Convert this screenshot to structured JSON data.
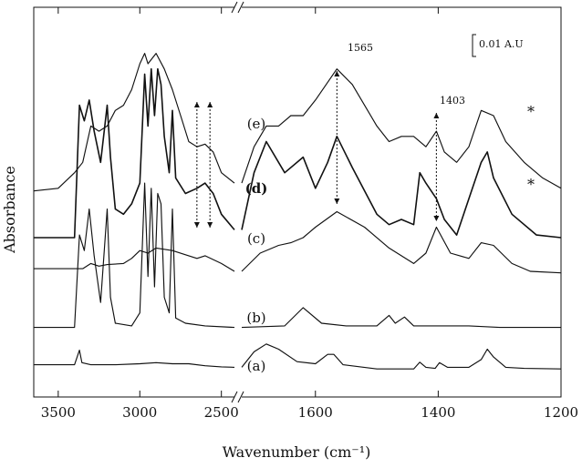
{
  "chart_data": {
    "type": "line",
    "title": "",
    "xlabel": "Wavenumber (cm⁻¹)",
    "ylabel": "Absorbance",
    "x_axis": {
      "broken": true,
      "reversed": true,
      "segments": [
        {
          "range": [
            3650,
            2420
          ],
          "ticks": [
            "3500",
            "3000",
            "2500"
          ],
          "tick_values": [
            3500,
            3000,
            2500
          ]
        },
        {
          "range": [
            1720,
            1200
          ],
          "ticks": [
            "1600",
            "1400",
            "1200"
          ],
          "tick_values": [
            1600,
            1400,
            1200
          ]
        }
      ]
    },
    "y_axis": {
      "ticks_shown": false
    },
    "scale_bar": "0.01 A.U",
    "peak_annotations": [
      {
        "label": "1565",
        "x": 1565
      },
      {
        "label": "1403",
        "x": 1403
      }
    ],
    "extra_arrows_x": [
      2650,
      2570
    ],
    "series": [
      {
        "name": "(a)",
        "offset": 0.1,
        "points": [
          [
            3650,
            0.1
          ],
          [
            3400,
            0.1
          ],
          [
            3370,
            0.38
          ],
          [
            3355,
            0.14
          ],
          [
            3300,
            0.1
          ],
          [
            3150,
            0.1
          ],
          [
            3000,
            0.12
          ],
          [
            2900,
            0.14
          ],
          [
            2800,
            0.12
          ],
          [
            2700,
            0.12
          ],
          [
            2600,
            0.08
          ],
          [
            2500,
            0.06
          ],
          [
            2420,
            0.05
          ],
          [
            1720,
            0.05
          ],
          [
            1700,
            0.35
          ],
          [
            1680,
            0.5
          ],
          [
            1660,
            0.4
          ],
          [
            1630,
            0.16
          ],
          [
            1600,
            0.12
          ],
          [
            1580,
            0.3
          ],
          [
            1570,
            0.3
          ],
          [
            1555,
            0.1
          ],
          [
            1500,
            0.02
          ],
          [
            1440,
            0.02
          ],
          [
            1430,
            0.15
          ],
          [
            1420,
            0.05
          ],
          [
            1405,
            0.03
          ],
          [
            1398,
            0.14
          ],
          [
            1385,
            0.05
          ],
          [
            1350,
            0.05
          ],
          [
            1330,
            0.2
          ],
          [
            1320,
            0.4
          ],
          [
            1310,
            0.25
          ],
          [
            1290,
            0.05
          ],
          [
            1260,
            0.03
          ],
          [
            1200,
            0.02
          ]
        ]
      },
      {
        "name": "(b)",
        "offset": 0.9,
        "points": [
          [
            3650,
            0.02
          ],
          [
            3400,
            0.02
          ],
          [
            3370,
            1.8
          ],
          [
            3340,
            1.5
          ],
          [
            3310,
            2.3
          ],
          [
            3280,
            1.4
          ],
          [
            3240,
            0.5
          ],
          [
            3200,
            2.3
          ],
          [
            3180,
            0.6
          ],
          [
            3150,
            0.1
          ],
          [
            3050,
            0.05
          ],
          [
            3000,
            0.3
          ],
          [
            2970,
            2.8
          ],
          [
            2950,
            1.0
          ],
          [
            2930,
            2.7
          ],
          [
            2910,
            0.8
          ],
          [
            2890,
            2.6
          ],
          [
            2870,
            2.4
          ],
          [
            2850,
            0.6
          ],
          [
            2820,
            0.3
          ],
          [
            2800,
            2.3
          ],
          [
            2780,
            0.2
          ],
          [
            2720,
            0.1
          ],
          [
            2600,
            0.05
          ],
          [
            2420,
            0.02
          ],
          [
            1720,
            0.02
          ],
          [
            1650,
            0.05
          ],
          [
            1620,
            0.4
          ],
          [
            1590,
            0.1
          ],
          [
            1550,
            0.05
          ],
          [
            1500,
            0.05
          ],
          [
            1480,
            0.25
          ],
          [
            1470,
            0.1
          ],
          [
            1455,
            0.22
          ],
          [
            1440,
            0.05
          ],
          [
            1400,
            0.05
          ],
          [
            1350,
            0.05
          ],
          [
            1300,
            0.02
          ],
          [
            1200,
            0.02
          ]
        ]
      },
      {
        "name": "(c)",
        "offset": 1.95,
        "points": [
          [
            3650,
            0.1
          ],
          [
            3350,
            0.1
          ],
          [
            3300,
            0.2
          ],
          [
            3250,
            0.15
          ],
          [
            3200,
            0.18
          ],
          [
            3100,
            0.2
          ],
          [
            3050,
            0.3
          ],
          [
            3000,
            0.45
          ],
          [
            2950,
            0.4
          ],
          [
            2900,
            0.5
          ],
          [
            2800,
            0.45
          ],
          [
            2700,
            0.35
          ],
          [
            2650,
            0.3
          ],
          [
            2600,
            0.35
          ],
          [
            2500,
            0.2
          ],
          [
            2420,
            0.05
          ],
          [
            1720,
            0.05
          ],
          [
            1690,
            0.4
          ],
          [
            1660,
            0.55
          ],
          [
            1640,
            0.6
          ],
          [
            1620,
            0.7
          ],
          [
            1600,
            0.9
          ],
          [
            1565,
            1.2
          ],
          [
            1520,
            0.9
          ],
          [
            1480,
            0.5
          ],
          [
            1440,
            0.2
          ],
          [
            1420,
            0.4
          ],
          [
            1403,
            0.9
          ],
          [
            1380,
            0.4
          ],
          [
            1350,
            0.3
          ],
          [
            1330,
            0.6
          ],
          [
            1310,
            0.55
          ],
          [
            1280,
            0.2
          ],
          [
            1250,
            0.05
          ],
          [
            1200,
            0.02
          ]
        ]
      },
      {
        "name": "(d)",
        "offset": 2.6,
        "points": [
          [
            3650,
            0.05
          ],
          [
            3400,
            0.05
          ],
          [
            3370,
            2.6
          ],
          [
            3340,
            2.3
          ],
          [
            3310,
            2.7
          ],
          [
            3280,
            2.1
          ],
          [
            3240,
            1.5
          ],
          [
            3200,
            2.6
          ],
          [
            3180,
            1.6
          ],
          [
            3150,
            0.6
          ],
          [
            3100,
            0.5
          ],
          [
            3050,
            0.7
          ],
          [
            3000,
            1.1
          ],
          [
            2970,
            3.2
          ],
          [
            2950,
            2.2
          ],
          [
            2930,
            3.3
          ],
          [
            2910,
            2.4
          ],
          [
            2890,
            3.3
          ],
          [
            2870,
            3.0
          ],
          [
            2850,
            2.0
          ],
          [
            2820,
            1.3
          ],
          [
            2800,
            2.5
          ],
          [
            2780,
            1.2
          ],
          [
            2720,
            0.9
          ],
          [
            2650,
            1.0
          ],
          [
            2600,
            1.1
          ],
          [
            2550,
            0.9
          ],
          [
            2500,
            0.5
          ],
          [
            2420,
            0.2
          ],
          [
            1720,
            0.2
          ],
          [
            1700,
            1.3
          ],
          [
            1680,
            1.9
          ],
          [
            1650,
            1.3
          ],
          [
            1620,
            1.6
          ],
          [
            1600,
            1.0
          ],
          [
            1580,
            1.5
          ],
          [
            1565,
            2.0
          ],
          [
            1540,
            1.4
          ],
          [
            1500,
            0.5
          ],
          [
            1480,
            0.3
          ],
          [
            1460,
            0.4
          ],
          [
            1440,
            0.3
          ],
          [
            1430,
            1.3
          ],
          [
            1420,
            1.1
          ],
          [
            1403,
            0.8
          ],
          [
            1390,
            0.4
          ],
          [
            1370,
            0.1
          ],
          [
            1350,
            0.8
          ],
          [
            1330,
            1.5
          ],
          [
            1320,
            1.7
          ],
          [
            1310,
            1.2
          ],
          [
            1280,
            0.5
          ],
          [
            1240,
            0.1
          ],
          [
            1200,
            0.05
          ]
        ]
      },
      {
        "name": "(e)",
        "offset": 3.5,
        "points": [
          [
            3650,
            0.05
          ],
          [
            3500,
            0.1
          ],
          [
            3400,
            0.4
          ],
          [
            3350,
            0.6
          ],
          [
            3300,
            1.3
          ],
          [
            3250,
            1.2
          ],
          [
            3200,
            1.3
          ],
          [
            3150,
            1.6
          ],
          [
            3100,
            1.7
          ],
          [
            3050,
            2.0
          ],
          [
            3000,
            2.5
          ],
          [
            2970,
            2.7
          ],
          [
            2950,
            2.5
          ],
          [
            2900,
            2.7
          ],
          [
            2850,
            2.4
          ],
          [
            2800,
            2.0
          ],
          [
            2750,
            1.5
          ],
          [
            2700,
            1.0
          ],
          [
            2650,
            0.9
          ],
          [
            2600,
            0.95
          ],
          [
            2550,
            0.8
          ],
          [
            2500,
            0.4
          ],
          [
            2420,
            0.2
          ],
          [
            1720,
            0.2
          ],
          [
            1700,
            0.9
          ],
          [
            1680,
            1.3
          ],
          [
            1660,
            1.3
          ],
          [
            1640,
            1.5
          ],
          [
            1620,
            1.5
          ],
          [
            1600,
            1.8
          ],
          [
            1565,
            2.4
          ],
          [
            1540,
            2.1
          ],
          [
            1500,
            1.3
          ],
          [
            1480,
            1.0
          ],
          [
            1460,
            1.1
          ],
          [
            1440,
            1.1
          ],
          [
            1420,
            0.9
          ],
          [
            1403,
            1.2
          ],
          [
            1390,
            0.8
          ],
          [
            1370,
            0.6
          ],
          [
            1350,
            0.9
          ],
          [
            1330,
            1.6
          ],
          [
            1310,
            1.5
          ],
          [
            1290,
            1.0
          ],
          [
            1260,
            0.6
          ],
          [
            1230,
            0.3
          ],
          [
            1200,
            0.1
          ]
        ]
      }
    ],
    "starred_series": [
      "(d)",
      "(e)"
    ]
  }
}
